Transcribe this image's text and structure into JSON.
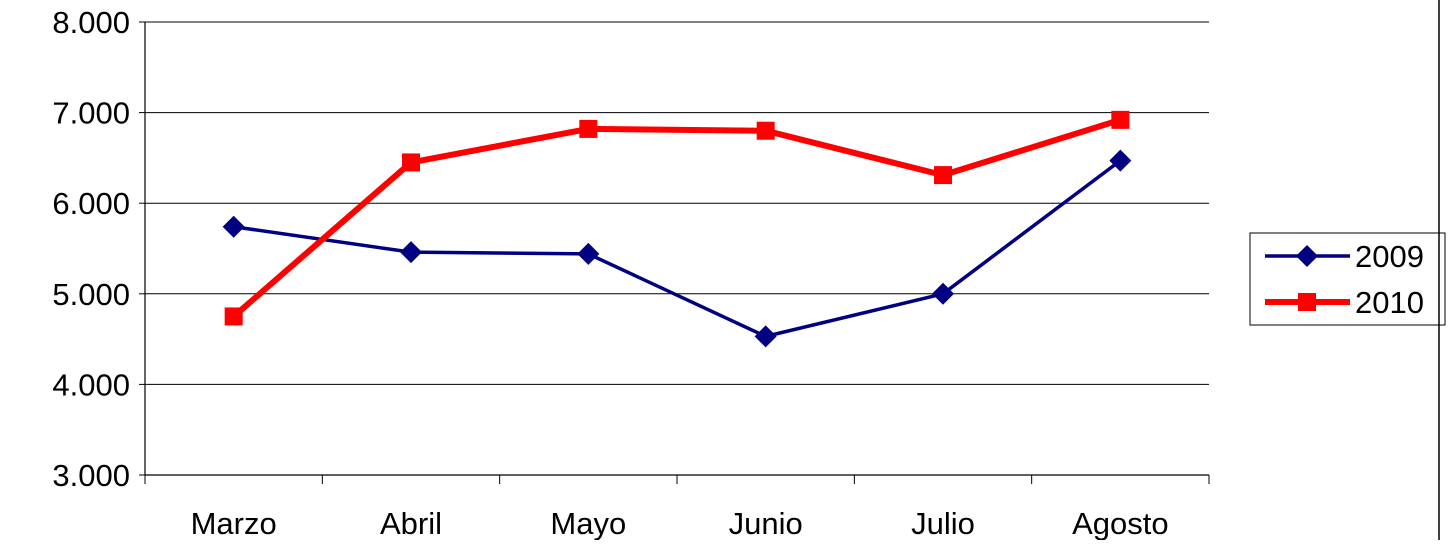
{
  "chart_data": {
    "type": "line",
    "categories": [
      "Marzo",
      "Abril",
      "Mayo",
      "Junio",
      "Julio",
      "Agosto"
    ],
    "series": [
      {
        "name": "2009",
        "values": [
          5740,
          5460,
          5440,
          4530,
          5000,
          6470
        ],
        "color": "#000080",
        "marker": "diamond"
      },
      {
        "name": "2010",
        "values": [
          4750,
          6450,
          6820,
          6800,
          6310,
          6920
        ],
        "color": "#ff0000",
        "marker": "square"
      }
    ],
    "ylim": [
      3000,
      8000
    ],
    "yticks": [
      {
        "value": 3000,
        "label": "3.000"
      },
      {
        "value": 4000,
        "label": "4.000"
      },
      {
        "value": 5000,
        "label": "5.000"
      },
      {
        "value": 6000,
        "label": "6.000"
      },
      {
        "value": 7000,
        "label": "7.000"
      },
      {
        "value": 8000,
        "label": "8.000"
      }
    ],
    "grid": true,
    "legend": "right"
  }
}
